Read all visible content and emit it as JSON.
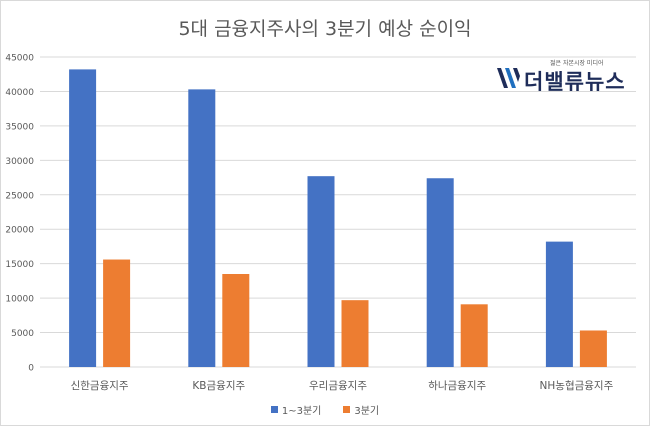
{
  "chart_data": {
    "type": "bar",
    "title": "5대 금융지주사의 3분기 예상 순이익",
    "categories": [
      "신한금융지주",
      "KB금융지주",
      "우리금융지주",
      "하나금융지주",
      "NH농협금융지주"
    ],
    "series": [
      {
        "name": "1~3분기",
        "color": "#4472c4",
        "values": [
          43200,
          40300,
          27700,
          27400,
          18200
        ]
      },
      {
        "name": "3분기",
        "color": "#ed7d31",
        "values": [
          15600,
          13500,
          9700,
          9100,
          5300
        ]
      }
    ],
    "ylim": [
      0,
      45000
    ],
    "yticks": [
      0,
      5000,
      10000,
      15000,
      20000,
      25000,
      30000,
      35000,
      40000,
      45000
    ],
    "grid": true,
    "legend": "bottom"
  },
  "logo": {
    "tagline": "젊은 자본시장 미디어",
    "name": "더밸류뉴스"
  }
}
